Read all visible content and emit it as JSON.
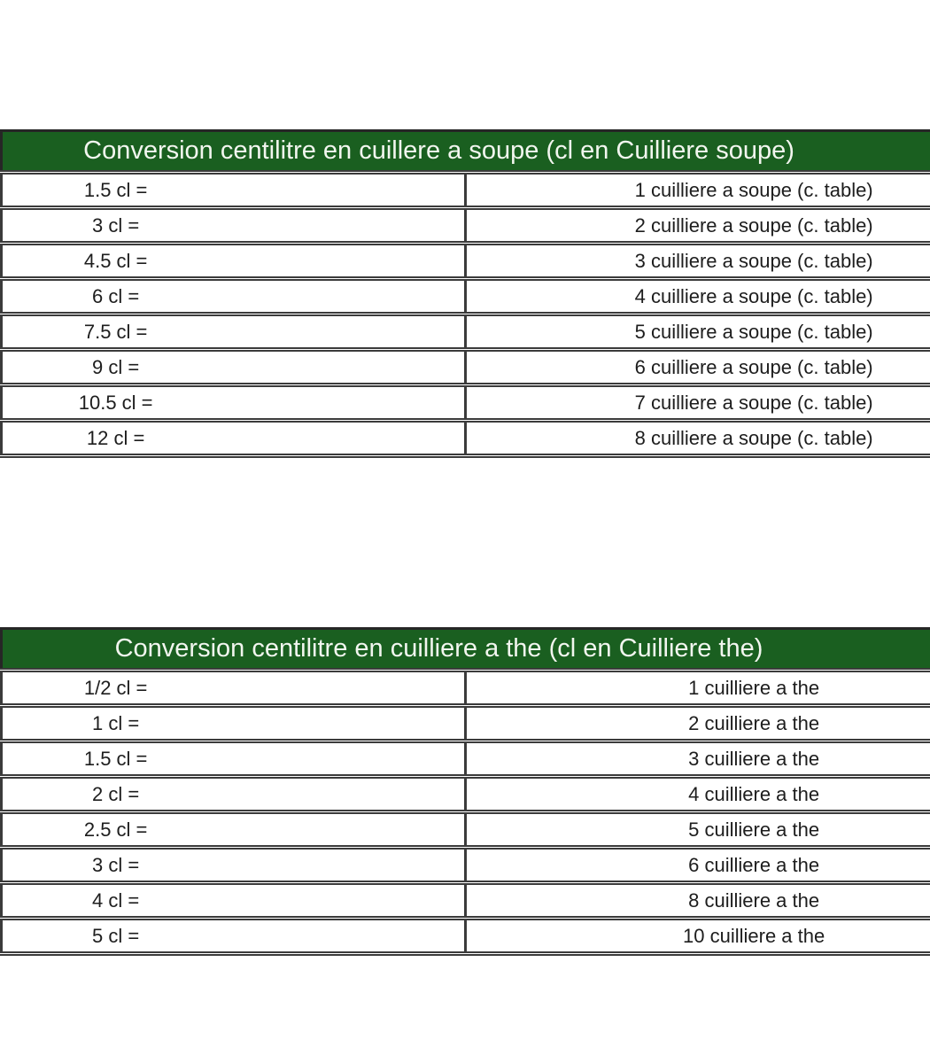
{
  "colors": {
    "header_bg": "#1a5f20",
    "header_text": "#f2f6ef",
    "border": "#3b3b3b",
    "cell_text": "#1d1d1d",
    "page_bg": "#ffffff"
  },
  "tables": [
    {
      "title": "Conversion centilitre en cuillere a soupe (cl en Cuilliere soupe)",
      "rows": [
        {
          "from": "1.5 cl =",
          "to": "1 cuilliere a soupe (c. table)"
        },
        {
          "from": "3 cl =",
          "to": "2 cuilliere a soupe (c. table)"
        },
        {
          "from": "4.5 cl =",
          "to": "3 cuilliere a soupe (c. table)"
        },
        {
          "from": "6 cl =",
          "to": "4 cuilliere a soupe (c. table)"
        },
        {
          "from": "7.5 cl =",
          "to": "5 cuilliere a soupe (c. table)"
        },
        {
          "from": "9 cl =",
          "to": "6 cuilliere a soupe (c. table)"
        },
        {
          "from": "10.5 cl =",
          "to": "7 cuilliere a soupe (c. table)"
        },
        {
          "from": "12 cl =",
          "to": "8 cuilliere a soupe (c. table)"
        }
      ]
    },
    {
      "title": "Conversion centilitre en cuilliere a the (cl en Cuilliere the)",
      "rows": [
        {
          "from": "1/2 cl =",
          "to": "1 cuilliere a the"
        },
        {
          "from": "1 cl =",
          "to": "2 cuilliere a the"
        },
        {
          "from": "1.5 cl =",
          "to": "3 cuilliere a the"
        },
        {
          "from": "2 cl =",
          "to": "4 cuilliere a the"
        },
        {
          "from": "2.5 cl =",
          "to": "5 cuilliere a the"
        },
        {
          "from": "3 cl =",
          "to": "6 cuilliere a the"
        },
        {
          "from": "4 cl =",
          "to": "8 cuilliere a the"
        },
        {
          "from": "5 cl =",
          "to": "10 cuilliere a the"
        }
      ]
    }
  ]
}
